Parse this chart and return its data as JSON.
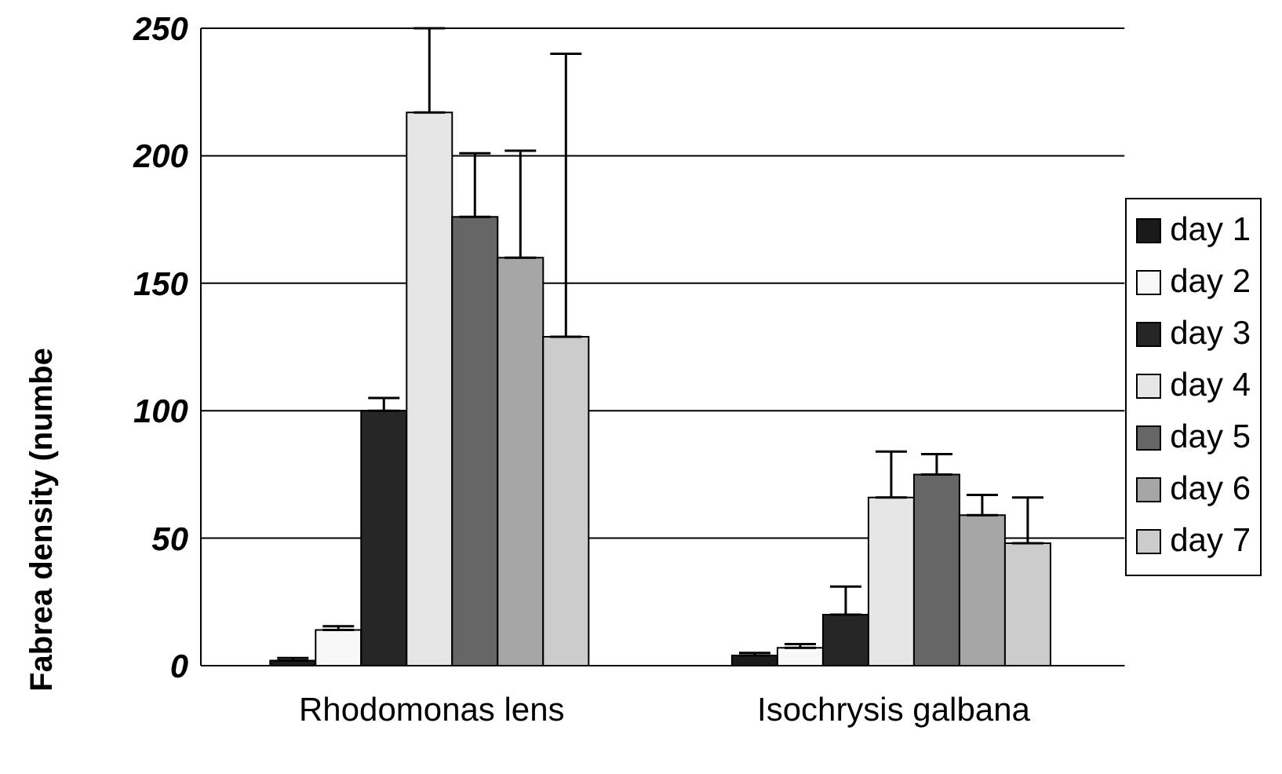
{
  "chart_data": {
    "type": "bar",
    "ylabel": "Fabrea density (numbe",
    "categories": [
      "Rhodomonas lens",
      "Isochrysis galbana"
    ],
    "series": [
      {
        "name": "day 1",
        "color": "#1a1a1a",
        "values": [
          2,
          4
        ],
        "errors": [
          [
            2,
            3
          ],
          [
            4,
            5
          ]
        ]
      },
      {
        "name": "day 2",
        "color": "#f8f8f8",
        "values": [
          14,
          7
        ],
        "errors": [
          [
            14,
            15.5
          ],
          [
            7,
            8.5
          ]
        ]
      },
      {
        "name": "day 3",
        "color": "#262626",
        "values": [
          100,
          20
        ],
        "errors": [
          [
            100,
            105
          ],
          [
            20,
            31
          ]
        ]
      },
      {
        "name": "day 4",
        "color": "#e6e6e6",
        "values": [
          217,
          66
        ],
        "errors": [
          [
            217,
            250
          ],
          [
            66,
            84
          ]
        ]
      },
      {
        "name": "day 5",
        "color": "#666666",
        "values": [
          176,
          75
        ],
        "errors": [
          [
            176,
            201
          ],
          [
            75,
            83
          ]
        ]
      },
      {
        "name": "day 6",
        "color": "#a6a6a6",
        "values": [
          160,
          59
        ],
        "errors": [
          [
            160,
            202
          ],
          [
            59,
            67
          ]
        ]
      },
      {
        "name": "day 7",
        "color": "#cccccc",
        "values": [
          129,
          48
        ],
        "errors": [
          [
            129,
            240
          ],
          [
            48,
            66
          ]
        ]
      }
    ],
    "ylim": [
      0,
      250
    ],
    "yticks": [
      0,
      50,
      100,
      150,
      200,
      250
    ],
    "grid": "y",
    "legend": "right"
  }
}
